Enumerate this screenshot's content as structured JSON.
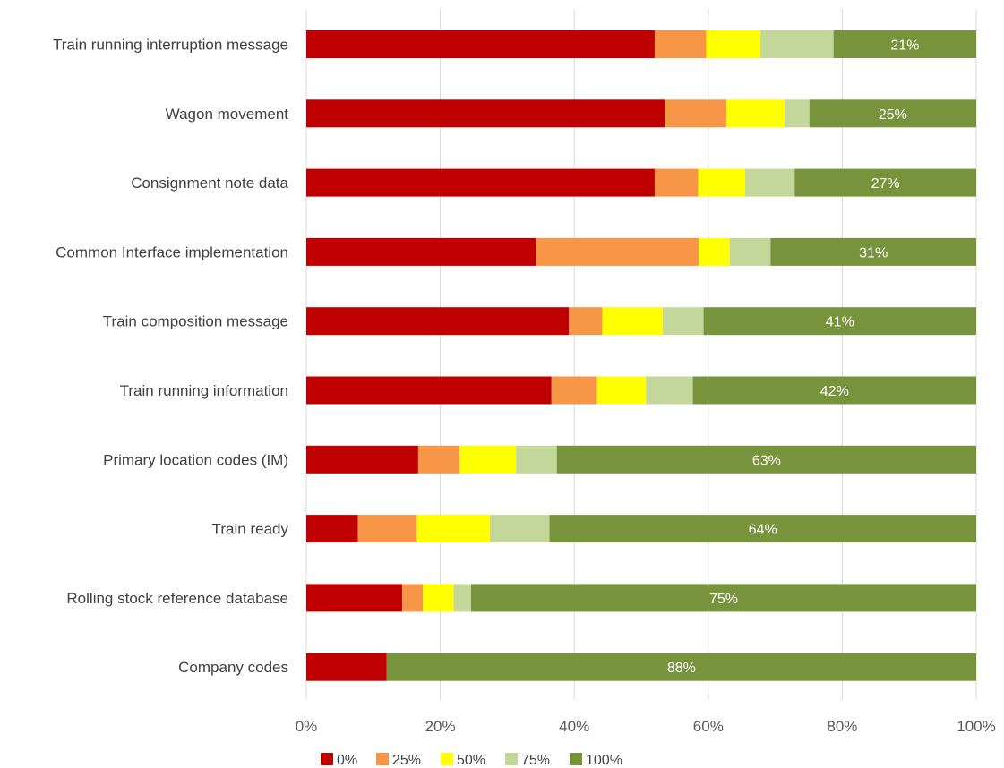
{
  "chart_data": {
    "type": "bar",
    "orientation": "horizontal",
    "stacked": "percent",
    "title": "",
    "xlabel": "",
    "ylabel": "",
    "xlim": [
      0,
      100
    ],
    "x_ticks": [
      "0%",
      "20%",
      "40%",
      "60%",
      "80%",
      "100%"
    ],
    "grid": true,
    "legend_position": "bottom",
    "categories": [
      "Train running interruption message",
      "Wagon movement",
      "Consignment note data",
      "Common Interface implementation",
      "Train composition message",
      "Train running information",
      "Primary location codes (IM)",
      "Train ready",
      "Rolling stock reference database",
      "Company codes"
    ],
    "series": [
      {
        "name": "0%",
        "color": "#c00000",
        "values": [
          52,
          53.5,
          52,
          34.3,
          39.2,
          36.6,
          16.7,
          7.7,
          14.3,
          12
        ]
      },
      {
        "name": "25%",
        "color": "#f79646",
        "values": [
          7.7,
          9.2,
          6.5,
          24.3,
          5,
          6.8,
          6.2,
          8.8,
          3.1,
          0
        ]
      },
      {
        "name": "50%",
        "color": "#ffff00",
        "values": [
          8.1,
          8.7,
          7,
          4.6,
          9,
          7.3,
          8.4,
          10.9,
          4.6,
          0
        ]
      },
      {
        "name": "75%",
        "color": "#c4d79b",
        "values": [
          10.9,
          3.7,
          7.4,
          6.1,
          6.1,
          7,
          6.1,
          8.9,
          2.6,
          0
        ]
      },
      {
        "name": "100%",
        "color": "#77933c",
        "values": [
          21.3,
          24.9,
          27.1,
          30.7,
          40.7,
          42.3,
          62.6,
          63.7,
          75.4,
          88
        ]
      }
    ],
    "data_labels": [
      "21%",
      "25%",
      "27%",
      "31%",
      "41%",
      "42%",
      "63%",
      "64%",
      "75%",
      "88%"
    ]
  }
}
